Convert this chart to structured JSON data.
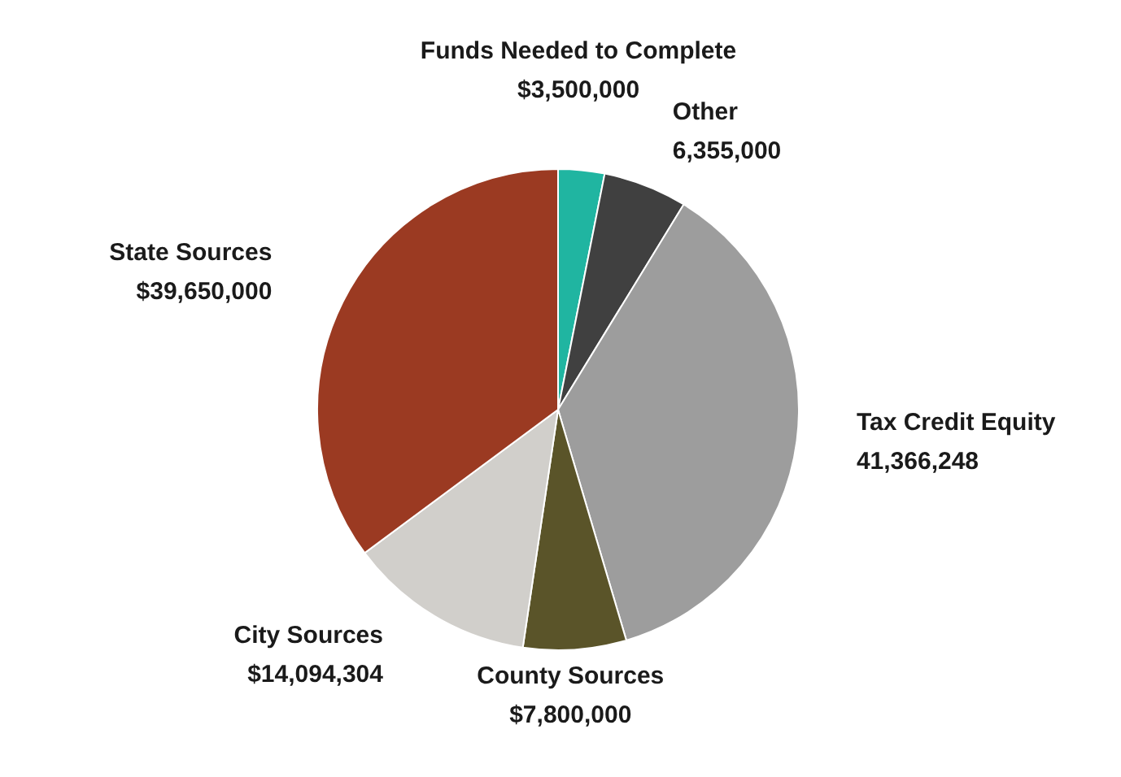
{
  "chart_data": {
    "type": "pie",
    "categories": [
      "Funds Needed to Complete",
      "Other",
      "Tax Credit Equity",
      "County Sources",
      "City Sources",
      "State Sources"
    ],
    "values": [
      3500000,
      6355000,
      41366248,
      7800000,
      14094304,
      39650000
    ],
    "value_labels": [
      "$3,500,000",
      "6,355,000",
      "41,366,248",
      "$7,800,000",
      "$14,094,304",
      "$39,650,000"
    ],
    "colors": [
      "#20b5a1",
      "#404040",
      "#9d9d9d",
      "#5a5429",
      "#d1cfcb",
      "#9b3a22"
    ]
  }
}
